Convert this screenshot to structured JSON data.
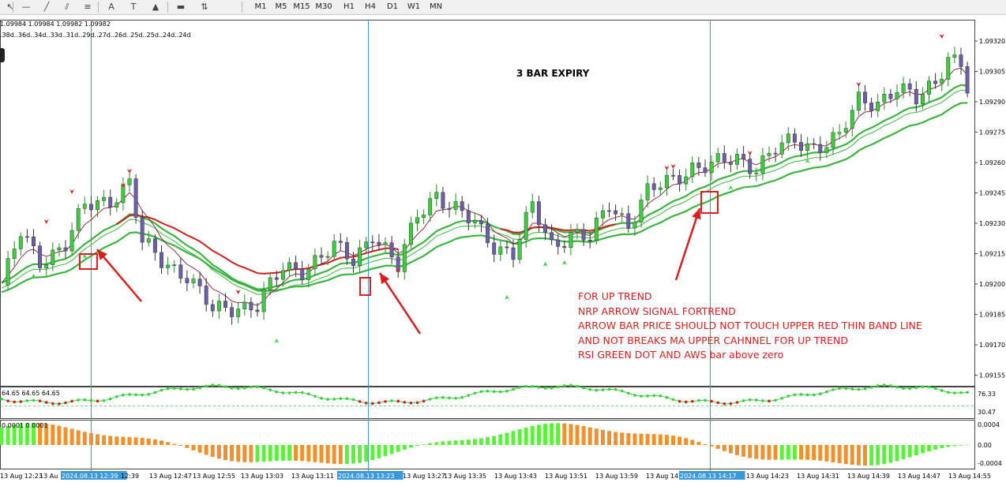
{
  "toolbar": {
    "tools": [
      {
        "icon": "cursor-icon",
        "glyph": "↖"
      },
      {
        "icon": "horizontal-line-icon",
        "glyph": "—"
      },
      {
        "icon": "trend-line-icon",
        "glyph": "╱"
      },
      {
        "icon": "equidistant-channel-icon",
        "glyph": "⫽"
      },
      {
        "icon": "fibonacci-icon",
        "glyph": "≡"
      },
      {
        "icon": "text-icon",
        "glyph": "A"
      },
      {
        "icon": "text-label-icon",
        "glyph": "T"
      },
      {
        "icon": "triangle-icon",
        "glyph": "▲"
      },
      {
        "icon": "rectangle-icon",
        "glyph": "▬"
      },
      {
        "icon": "arrows-icon",
        "glyph": "⇅"
      }
    ],
    "timeframes": [
      "M1",
      "M5",
      "M15",
      "M30",
      "H1",
      "H4",
      "D1",
      "W1",
      "MN"
    ]
  },
  "ohlc_text": "1.09984 1.09984 1.09982 1.09982",
  "distances_text": ".38d..36d..34d..33d..31d..29d..27d..26d..25d..25d..24d..24d",
  "title": "3 BAR EXPIRY",
  "notes": [
    "FOR UP TREND",
    "NRP ARROW SIGNAL FORTREND",
    "ARROW BAR PRICE SHOULD NOT TOUCH UPPER RED THIN BAND LINE",
    "AND NOT BREAKS MA UPPER CAHNNEL FOR UP TREND",
    "RSI GREEN DOT AND AWS bar above zero"
  ],
  "price_axis": [
    "1.09320",
    "1.09305",
    "1.09290",
    "1.09275",
    "1.09260",
    "1.09245",
    "1.09230",
    "1.09215",
    "1.09200",
    "1.09185",
    "1.09170",
    "1.09155"
  ],
  "rsi": {
    "labels": [
      "64.65",
      "64.65",
      "64.65"
    ],
    "axis": [
      "76.33",
      "30.47"
    ]
  },
  "aws": {
    "label": "0.0001 0.0001",
    "axis": [
      "0.0004",
      "0.00",
      "-0.0004"
    ]
  },
  "time_axis": [
    "13 Aug 12:23",
    "13 Au",
    "2024.08.13 12:39",
    "12:39",
    "13 Aug 12:47",
    "13 Aug 12:55",
    "13 Aug 13:03",
    "13 Aug 13:11",
    "2024.08.13 13:23",
    "13 Aug 13:27",
    "13 Aug 13:35",
    "13 Aug 13:43",
    "13 Aug 13:51",
    "13 Aug 13:59",
    "13 Aug 14",
    "2024.08.13 14:17",
    "13 Aug 14:23",
    "13 Aug 14:31",
    "13 Aug 14:39",
    "13 Aug 14:47",
    "13 Aug 14:55"
  ],
  "colors": {
    "bull": "#39d03c",
    "bear": "#6b5fa8",
    "ma": "#3bb53f",
    "red_ma": "#cc2020",
    "band": "#8b1a2b",
    "crosshair": "#3a9ad9",
    "note": "#d81e1e"
  }
}
